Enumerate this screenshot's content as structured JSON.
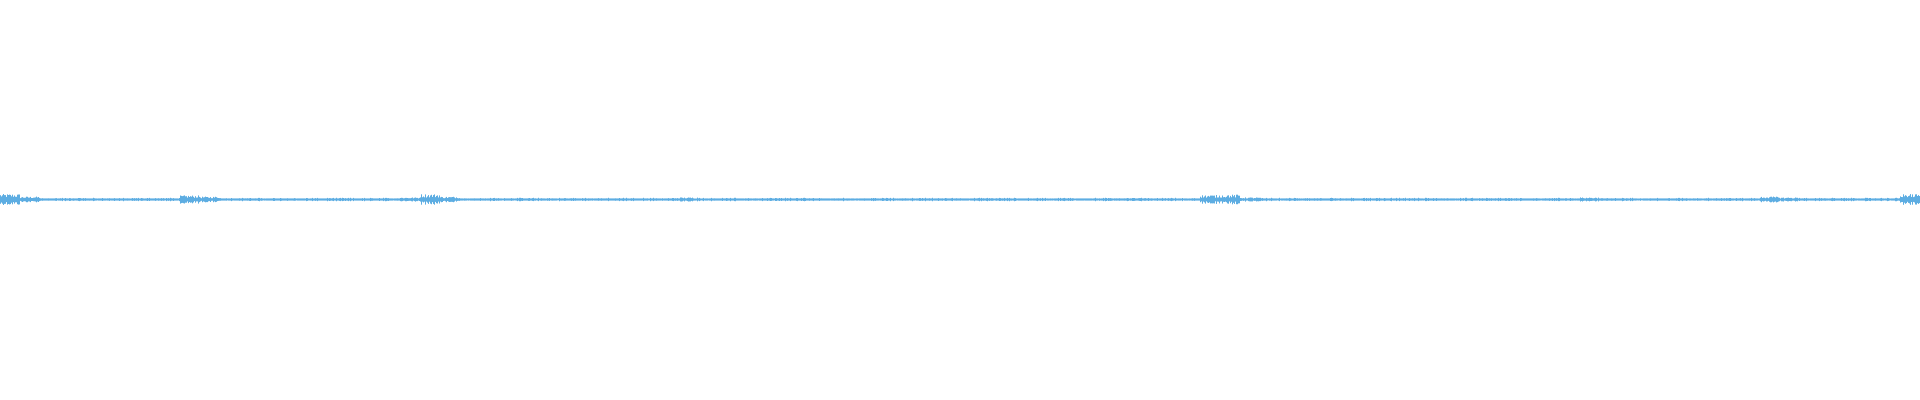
{
  "waveform": {
    "color": "#5DADE2",
    "background": "#FFFFFF",
    "amplitude_envelope": [
      0.025,
      0.012,
      0.006,
      0.006,
      0.006,
      0.006,
      0.006,
      0.006,
      0.006,
      0.018,
      0.012,
      0.006,
      0.006,
      0.006,
      0.006,
      0.006,
      0.006,
      0.006,
      0.006,
      0.006,
      0.008,
      0.025,
      0.012,
      0.006,
      0.006,
      0.006,
      0.006,
      0.006,
      0.006,
      0.006,
      0.006,
      0.006,
      0.006,
      0.006,
      0.008,
      0.006,
      0.006,
      0.006,
      0.006,
      0.006,
      0.006,
      0.006,
      0.006,
      0.006,
      0.006,
      0.006,
      0.006,
      0.006,
      0.006,
      0.006,
      0.006,
      0.006,
      0.006,
      0.006,
      0.006,
      0.006,
      0.006,
      0.006,
      0.006,
      0.006,
      0.02,
      0.022,
      0.008,
      0.006,
      0.006,
      0.006,
      0.006,
      0.006,
      0.006,
      0.006,
      0.006,
      0.006,
      0.006,
      0.006,
      0.006,
      0.006,
      0.006,
      0.006,
      0.006,
      0.008,
      0.006,
      0.006,
      0.006,
      0.006,
      0.006,
      0.006,
      0.006,
      0.006,
      0.012,
      0.008,
      0.006,
      0.006,
      0.006,
      0.006,
      0.006,
      0.025
    ]
  }
}
